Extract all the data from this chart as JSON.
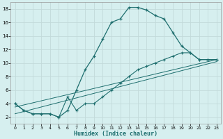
{
  "xlabel": "Humidex (Indice chaleur)",
  "background_color": "#d6efef",
  "grid_color": "#c2dada",
  "line_color": "#1e6e6e",
  "xlim": [
    -0.5,
    23.5
  ],
  "ylim": [
    1,
    19
  ],
  "xticks": [
    0,
    1,
    2,
    3,
    4,
    5,
    6,
    7,
    8,
    9,
    10,
    11,
    12,
    13,
    14,
    15,
    16,
    17,
    18,
    19,
    20,
    21,
    22,
    23
  ],
  "yticks": [
    2,
    4,
    6,
    8,
    10,
    12,
    14,
    16,
    18
  ],
  "line1_x": [
    0,
    1,
    2,
    3,
    4,
    5,
    6,
    7,
    8,
    9,
    10,
    11,
    12,
    13,
    14,
    15,
    16,
    17,
    18,
    19,
    20,
    21,
    22,
    23
  ],
  "line1_y": [
    4,
    3,
    2.5,
    2.5,
    2.5,
    2,
    3,
    6,
    9,
    11,
    13.5,
    16,
    16.5,
    18.2,
    18.2,
    17.8,
    17,
    16.5,
    14.5,
    12.5,
    11.5,
    10.5,
    10.5,
    10.5
  ],
  "line2_x": [
    0,
    1,
    2,
    3,
    4,
    5,
    6,
    7,
    8,
    9,
    10,
    11,
    12,
    13,
    14,
    15,
    16,
    17,
    18,
    19,
    20,
    21,
    22,
    23
  ],
  "line2_y": [
    4,
    3,
    2.5,
    2.5,
    2.5,
    2,
    5,
    3,
    4,
    4,
    5,
    6,
    7,
    8,
    9,
    9.5,
    10,
    10.5,
    11,
    11.5,
    11.5,
    10.5,
    10.5,
    10.5
  ],
  "line3_x": [
    0,
    23
  ],
  "line3_y": [
    3.5,
    10.5
  ],
  "line4_x": [
    0,
    23
  ],
  "line4_y": [
    2.5,
    10.2
  ]
}
